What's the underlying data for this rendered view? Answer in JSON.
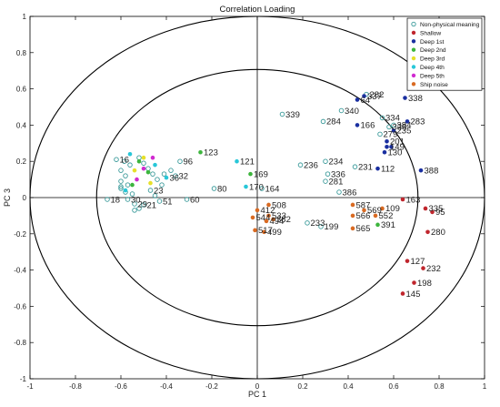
{
  "chart_data": {
    "type": "scatter",
    "title": "Correlation Loading",
    "xlabel": "PC 1",
    "ylabel": "PC 3",
    "xlim": [
      -1,
      1
    ],
    "ylim": [
      -1,
      1
    ],
    "xticks": [
      -1,
      -0.8,
      -0.6,
      -0.4,
      -0.2,
      0,
      0.2,
      0.4,
      0.6,
      0.8,
      1
    ],
    "xtick_labels": [
      "-1",
      "-0.8",
      "-0.6",
      "-0.4",
      "-0.2",
      "0",
      "0.2",
      "0.4",
      "0.6",
      "0.8",
      "1"
    ],
    "yticks": [
      -1,
      -0.8,
      -0.6,
      -0.4,
      -0.2,
      0,
      0.2,
      0.4,
      0.6,
      0.8,
      1
    ],
    "ytick_labels": [
      "-1",
      "-0.8",
      "-0.6",
      "-0.4",
      "-0.2",
      "0",
      "0.2",
      "0.4",
      "0.6",
      "0.8",
      "1"
    ],
    "grid": false,
    "legend_position": "top-right",
    "reference_circles": [
      1.0,
      0.7071
    ],
    "series": [
      {
        "name": "Non-physical meaning",
        "color": "#3a9a9a",
        "hollow": true,
        "points": [
          {
            "x": -0.62,
            "y": 0.21,
            "label": "16"
          },
          {
            "x": -0.585,
            "y": 0.2,
            "label": ""
          },
          {
            "x": -0.56,
            "y": 0.18,
            "label": ""
          },
          {
            "x": -0.6,
            "y": 0.15,
            "label": ""
          },
          {
            "x": -0.58,
            "y": 0.12,
            "label": ""
          },
          {
            "x": -0.6,
            "y": 0.09,
            "label": ""
          },
          {
            "x": -0.57,
            "y": 0.07,
            "label": ""
          },
          {
            "x": -0.6,
            "y": 0.05,
            "label": ""
          },
          {
            "x": -0.58,
            "y": 0.03,
            "label": ""
          },
          {
            "x": -0.55,
            "y": 0.02,
            "label": ""
          },
          {
            "x": -0.57,
            "y": -0.01,
            "label": "30"
          },
          {
            "x": -0.54,
            "y": -0.035,
            "label": "29"
          },
          {
            "x": -0.5,
            "y": -0.04,
            "label": "21"
          },
          {
            "x": -0.52,
            "y": -0.06,
            "label": ""
          },
          {
            "x": -0.54,
            "y": -0.07,
            "label": ""
          },
          {
            "x": -0.52,
            "y": 0.22,
            "label": ""
          },
          {
            "x": -0.5,
            "y": 0.19,
            "label": ""
          },
          {
            "x": -0.48,
            "y": 0.16,
            "label": ""
          },
          {
            "x": -0.46,
            "y": 0.13,
            "label": ""
          },
          {
            "x": -0.44,
            "y": 0.1,
            "label": ""
          },
          {
            "x": -0.42,
            "y": 0.07,
            "label": ""
          },
          {
            "x": -0.47,
            "y": 0.04,
            "label": "23"
          },
          {
            "x": -0.45,
            "y": 0.01,
            "label": ""
          },
          {
            "x": -0.41,
            "y": 0.13,
            "label": ""
          },
          {
            "x": -0.38,
            "y": 0.15,
            "label": ""
          },
          {
            "x": -0.36,
            "y": 0.12,
            "label": "32"
          },
          {
            "x": -0.66,
            "y": -0.01,
            "label": "18"
          },
          {
            "x": -0.6,
            "y": 0.06,
            "label": ""
          },
          {
            "x": -0.43,
            "y": -0.02,
            "label": "51"
          },
          {
            "x": -0.34,
            "y": 0.2,
            "label": "96"
          },
          {
            "x": -0.31,
            "y": -0.01,
            "label": "60"
          },
          {
            "x": -0.19,
            "y": 0.05,
            "label": "80"
          },
          {
            "x": 0.11,
            "y": 0.46,
            "label": "339"
          },
          {
            "x": 0.29,
            "y": 0.42,
            "label": "284"
          },
          {
            "x": 0.37,
            "y": 0.48,
            "label": "340"
          },
          {
            "x": 0.48,
            "y": 0.57,
            "label": "282"
          },
          {
            "x": 0.55,
            "y": 0.44,
            "label": "334"
          },
          {
            "x": 0.6,
            "y": 0.4,
            "label": "384"
          },
          {
            "x": 0.58,
            "y": 0.39,
            "label": "338"
          },
          {
            "x": 0.54,
            "y": 0.35,
            "label": "279"
          },
          {
            "x": 0.3,
            "y": 0.2,
            "label": "234"
          },
          {
            "x": 0.19,
            "y": 0.18,
            "label": "236"
          },
          {
            "x": 0.31,
            "y": 0.13,
            "label": "336"
          },
          {
            "x": 0.3,
            "y": 0.09,
            "label": "281"
          },
          {
            "x": 0.36,
            "y": 0.03,
            "label": "386"
          },
          {
            "x": 0.43,
            "y": 0.17,
            "label": "231"
          },
          {
            "x": 0.02,
            "y": 0.05,
            "label": "164"
          },
          {
            "x": 0.28,
            "y": -0.16,
            "label": "199"
          },
          {
            "x": 0.22,
            "y": -0.14,
            "label": "233"
          }
        ]
      },
      {
        "name": "Shallow",
        "color": "#c0262d",
        "hollow": false,
        "points": [
          {
            "x": 0.74,
            "y": -0.06,
            "label": "335"
          },
          {
            "x": 0.77,
            "y": -0.08,
            "label": "95"
          },
          {
            "x": 0.75,
            "y": -0.19,
            "label": "280"
          },
          {
            "x": 0.66,
            "y": -0.35,
            "label": "127"
          },
          {
            "x": 0.73,
            "y": -0.39,
            "label": "232"
          },
          {
            "x": 0.69,
            "y": -0.47,
            "label": "198"
          },
          {
            "x": 0.64,
            "y": -0.53,
            "label": "145"
          },
          {
            "x": 0.64,
            "y": -0.01,
            "label": "163"
          }
        ]
      },
      {
        "name": "Deep 1st",
        "color": "#1a2fa0",
        "hollow": false,
        "points": [
          {
            "x": 0.44,
            "y": 0.54,
            "label": "64"
          },
          {
            "x": 0.47,
            "y": 0.56,
            "label": "337"
          },
          {
            "x": 0.65,
            "y": 0.55,
            "label": "338"
          },
          {
            "x": 0.66,
            "y": 0.42,
            "label": "283"
          },
          {
            "x": 0.6,
            "y": 0.37,
            "label": "235"
          },
          {
            "x": 0.44,
            "y": 0.4,
            "label": "166"
          },
          {
            "x": 0.57,
            "y": 0.31,
            "label": "201"
          },
          {
            "x": 0.57,
            "y": 0.28,
            "label": "149"
          },
          {
            "x": 0.59,
            "y": 0.28,
            "label": ""
          },
          {
            "x": 0.56,
            "y": 0.25,
            "label": "130"
          },
          {
            "x": 0.53,
            "y": 0.16,
            "label": "112"
          },
          {
            "x": 0.72,
            "y": 0.15,
            "label": "388"
          }
        ]
      },
      {
        "name": "Deep 2nd",
        "color": "#3db53d",
        "hollow": false,
        "points": [
          {
            "x": -0.25,
            "y": 0.25,
            "label": "123"
          },
          {
            "x": -0.03,
            "y": 0.13,
            "label": "169"
          },
          {
            "x": 0.53,
            "y": -0.15,
            "label": "391"
          },
          {
            "x": -0.52,
            "y": 0.2,
            "label": ""
          },
          {
            "x": -0.48,
            "y": 0.14,
            "label": ""
          },
          {
            "x": -0.55,
            "y": 0.07,
            "label": ""
          }
        ]
      },
      {
        "name": "Deep 3rd",
        "color": "#e6e02a",
        "hollow": false,
        "points": [
          {
            "x": -0.5,
            "y": 0.22,
            "label": ""
          },
          {
            "x": -0.54,
            "y": 0.15,
            "label": ""
          },
          {
            "x": -0.47,
            "y": 0.08,
            "label": ""
          }
        ]
      },
      {
        "name": "Deep 4th",
        "color": "#28c7d8",
        "hollow": false,
        "points": [
          {
            "x": -0.09,
            "y": 0.2,
            "label": "121"
          },
          {
            "x": -0.05,
            "y": 0.06,
            "label": "170"
          },
          {
            "x": -0.56,
            "y": 0.24,
            "label": ""
          },
          {
            "x": -0.45,
            "y": 0.18,
            "label": ""
          },
          {
            "x": -0.4,
            "y": 0.11,
            "label": "36"
          },
          {
            "x": -0.58,
            "y": 0.04,
            "label": ""
          }
        ]
      },
      {
        "name": "Deep 5th",
        "color": "#d12bd1",
        "hollow": false,
        "points": [
          {
            "x": -0.5,
            "y": 0.16,
            "label": ""
          },
          {
            "x": -0.46,
            "y": 0.22,
            "label": ""
          },
          {
            "x": -0.53,
            "y": 0.1,
            "label": ""
          }
        ]
      },
      {
        "name": "Ship noise",
        "color": "#d96a22",
        "hollow": false,
        "points": [
          {
            "x": 0.05,
            "y": -0.04,
            "label": "508"
          },
          {
            "x": 0.0,
            "y": -0.07,
            "label": "412"
          },
          {
            "x": 0.05,
            "y": -0.1,
            "label": "533"
          },
          {
            "x": 0.07,
            "y": -0.12,
            "label": "382"
          },
          {
            "x": 0.04,
            "y": -0.13,
            "label": "494"
          },
          {
            "x": -0.02,
            "y": -0.11,
            "label": "544"
          },
          {
            "x": -0.01,
            "y": -0.18,
            "label": "517"
          },
          {
            "x": 0.03,
            "y": -0.19,
            "label": "499"
          },
          {
            "x": 0.42,
            "y": -0.04,
            "label": "587"
          },
          {
            "x": 0.47,
            "y": -0.07,
            "label": "569"
          },
          {
            "x": 0.55,
            "y": -0.06,
            "label": "109"
          },
          {
            "x": 0.42,
            "y": -0.1,
            "label": "566"
          },
          {
            "x": 0.52,
            "y": -0.1,
            "label": "552"
          },
          {
            "x": 0.42,
            "y": -0.17,
            "label": "565"
          }
        ]
      }
    ]
  }
}
